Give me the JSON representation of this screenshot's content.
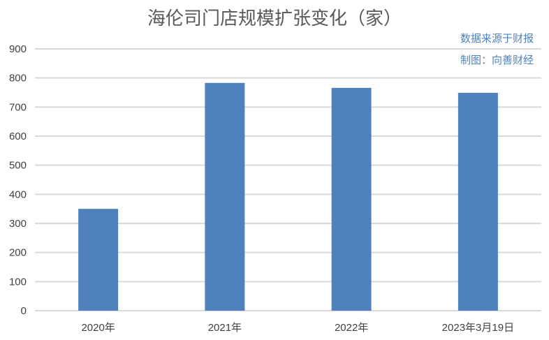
{
  "chart_data": {
    "type": "bar",
    "title": "海伦司门店规模扩张变化（家）",
    "annotations": [
      "数据来源于财报",
      "制图：向善财经"
    ],
    "categories": [
      "2020年",
      "2021年",
      "2022年",
      "2023年3月19日"
    ],
    "values": [
      350,
      783,
      766,
      749
    ],
    "ylim": [
      0,
      900
    ],
    "yticks": [
      0,
      100,
      200,
      300,
      400,
      500,
      600,
      700,
      800,
      900
    ],
    "grid": true,
    "bar_color": "#4f81bd"
  }
}
